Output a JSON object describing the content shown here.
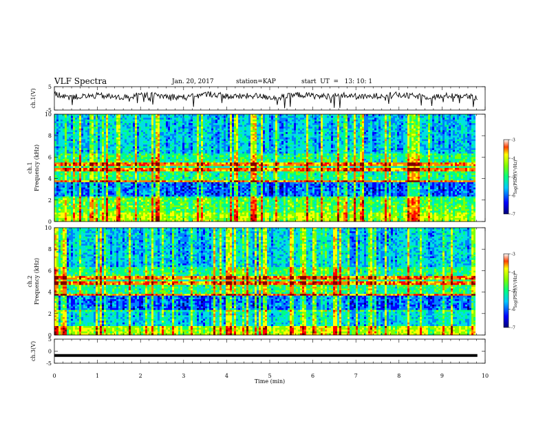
{
  "header": {
    "title": "VLF Spectra",
    "date": "Jan. 20, 2017",
    "station": "station=KAP",
    "start": "start  UT  =   13: 10: 1"
  },
  "chart_data": [
    {
      "type": "line",
      "panel": "ch1-waveform",
      "ylabel": "ch.1(V)",
      "ylim": [
        -5,
        5
      ],
      "yticks": [
        "5",
        "-5"
      ],
      "xlim": [
        0,
        10
      ],
      "description_values": "noisy voltage trace fluctuating around 0 V, roughly -2 to +3 V",
      "approx_y": [
        1.8,
        0.6,
        1.2,
        0.3,
        1.5,
        0.9,
        0.4,
        1.9,
        0.7,
        1.1,
        0.2,
        1.6,
        0.8,
        1.3,
        0.5,
        1.7,
        1.0,
        0.6,
        1.4,
        0.3
      ],
      "color": "#000000"
    },
    {
      "type": "heatmap",
      "panel": "ch1-spectrogram",
      "ylabel": "ch.1\nFrequency (kHz)",
      "ylim": [
        0,
        10
      ],
      "yticks": [
        "0",
        "2",
        "4",
        "6",
        "8",
        "10"
      ],
      "xlim": [
        0,
        10
      ],
      "colorbar": {
        "label": "log(PSD)(V²/Hz)",
        "ticks": [
          "-3",
          "-4",
          "-5",
          "-6",
          "-7"
        ],
        "range": [
          -7,
          -3
        ]
      }
    },
    {
      "type": "heatmap",
      "panel": "ch2-spectrogram",
      "ylabel": "ch.2\nFrequency (kHz)",
      "ylim": [
        0,
        10
      ],
      "yticks": [
        "0",
        "2",
        "4",
        "6",
        "8",
        "10"
      ],
      "xlim": [
        0,
        10
      ],
      "colorbar": {
        "label": "log(PSD)(V²/Hz)",
        "ticks": [
          "-3",
          "-4",
          "-5",
          "-6",
          "-7"
        ],
        "range": [
          -7,
          -3
        ]
      }
    },
    {
      "type": "line",
      "panel": "ch3-waveform",
      "ylabel": "ch.3(V)",
      "ylim": [
        -5,
        5
      ],
      "yticks": [
        "5",
        "0",
        "-5"
      ],
      "xlim": [
        0,
        10
      ],
      "values": [
        -1.8,
        -1.8
      ],
      "color": "#000000"
    }
  ],
  "xaxis": {
    "label": "Time (min)",
    "ticks": [
      "0",
      "1",
      "2",
      "3",
      "4",
      "5",
      "6",
      "7",
      "8",
      "9",
      "10"
    ]
  },
  "colormap": [
    "#00007a",
    "#0000ff",
    "#0080ff",
    "#00e0e0",
    "#00ff80",
    "#80ff00",
    "#ffff00",
    "#ff8000",
    "#ff0000",
    "#800000"
  ]
}
